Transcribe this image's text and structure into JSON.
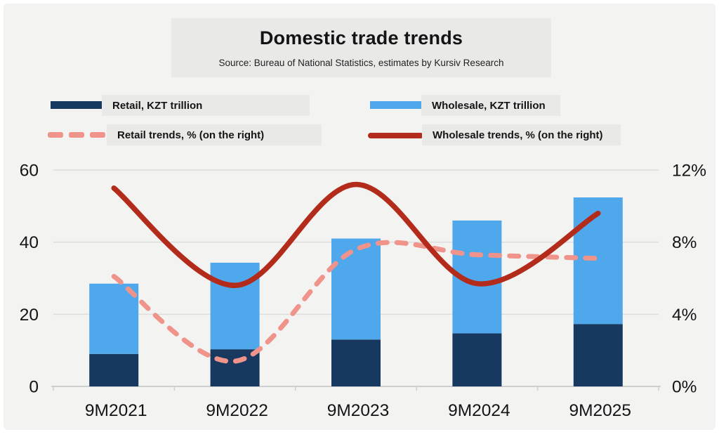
{
  "title": "Domestic trade trends",
  "subtitle": "Source: Bureau of National Statistics, estimates by Kursiv Research",
  "legend": {
    "retail_bar": "Retail, KZT trillion",
    "wholesale_bar": "Wholesale, KZT trillion",
    "retail_line": "Retail trends, % (on the right)",
    "wholesale_line": "Wholesale trends, % (on the right)"
  },
  "colors": {
    "retail_bar": "#17395f",
    "wholesale_bar": "#4fa7ec",
    "retail_line": "#f0948b",
    "wholesale_line": "#b32c1b",
    "panel_bg": "#f3f3f2",
    "box_bg": "#e9e9e8",
    "grid": "#dddddd",
    "axis": "#cfcfcf",
    "text": "#141414"
  },
  "chart_data": {
    "type": "bar",
    "subtype": "stacked-bars-with-smooth-lines",
    "title": "Domestic trade trends",
    "categories": [
      "9M2021",
      "9M2022",
      "9M2023",
      "9M2024",
      "9M2025"
    ],
    "series": [
      {
        "name": "Retail, KZT trillion",
        "type": "bar",
        "stack": "trade",
        "axis": "left",
        "values": [
          9.0,
          10.3,
          13.0,
          14.7,
          17.3
        ]
      },
      {
        "name": "Wholesale, KZT trillion",
        "type": "bar",
        "stack": "trade",
        "axis": "left",
        "values": [
          19.5,
          24.0,
          28.0,
          31.3,
          35.1
        ]
      },
      {
        "name": "Retail trends, % (on the right)",
        "type": "line",
        "style": "dashed",
        "axis": "right",
        "values": [
          6.1,
          1.4,
          7.6,
          7.3,
          7.1
        ]
      },
      {
        "name": "Wholesale trends, % (on the right)",
        "type": "line",
        "style": "solid",
        "axis": "right",
        "values": [
          11.0,
          5.6,
          11.2,
          5.7,
          9.6
        ]
      }
    ],
    "left_axis": {
      "range": [
        0,
        60
      ],
      "ticks": [
        0,
        20,
        40,
        60
      ],
      "labels": [
        "0",
        "20",
        "40",
        "60"
      ]
    },
    "right_axis": {
      "range": [
        0,
        12
      ],
      "ticks": [
        0,
        4,
        8,
        12
      ],
      "labels": [
        "0%",
        "4%",
        "8%",
        "12%"
      ]
    },
    "grid": true,
    "legend_position": "top"
  }
}
